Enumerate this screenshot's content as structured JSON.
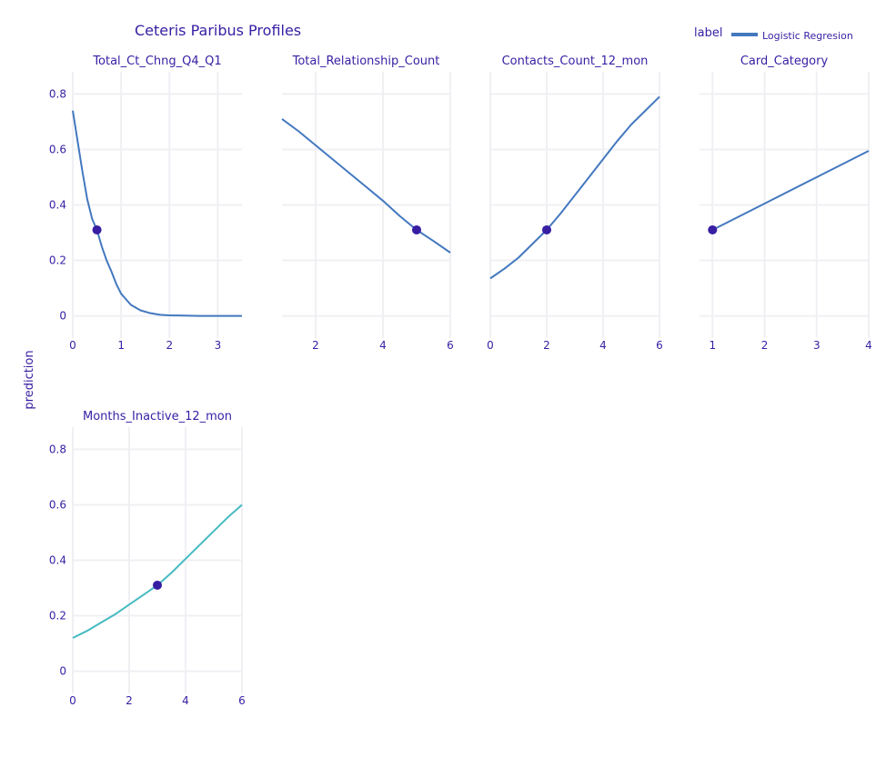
{
  "colors": {
    "text": "#371ea3",
    "grid": "#f0f0f4",
    "line_primary": "#4378bf",
    "line_secondary": "#46bac2",
    "point": "#371ea3"
  },
  "chart_data": {
    "type": "line",
    "title": "Ceteris Paribus Profiles",
    "ylabel": "prediction",
    "ylim": [
      -0.08,
      0.88
    ],
    "yticks": [
      0,
      0.2,
      0.4,
      0.6,
      0.8
    ],
    "ytick_labels": [
      "0",
      "0.2",
      "0.4",
      "0.6",
      "0.8"
    ],
    "legend": {
      "title": "label",
      "position": "top-right",
      "entries": [
        {
          "name": "Logistic Regresion",
          "color": "#4378bf"
        }
      ]
    },
    "panels": [
      {
        "title": "Total_Ct_Chng_Q4_Q1",
        "xlim": [
          0,
          3.5
        ],
        "xticks": [
          0,
          1,
          2,
          3
        ],
        "xtick_labels": [
          "0",
          "1",
          "2",
          "3"
        ],
        "color": "#4378bf",
        "x": [
          0,
          0.1,
          0.2,
          0.3,
          0.4,
          0.5,
          0.6,
          0.7,
          0.8,
          0.9,
          1.0,
          1.1,
          1.2,
          1.4,
          1.6,
          1.8,
          2.0,
          2.3,
          2.6,
          3.0,
          3.5
        ],
        "y": [
          0.74,
          0.63,
          0.52,
          0.42,
          0.35,
          0.31,
          0.25,
          0.2,
          0.16,
          0.115,
          0.08,
          0.06,
          0.04,
          0.02,
          0.01,
          0.004,
          0.002,
          0.001,
          0.0,
          0.0,
          0.0
        ],
        "point": {
          "x": 0.5,
          "y": 0.31
        }
      },
      {
        "title": "Total_Relationship_Count",
        "xlim": [
          1,
          6
        ],
        "xticks": [
          2,
          4,
          6
        ],
        "xtick_labels": [
          "2",
          "4",
          "6"
        ],
        "color": "#4378bf",
        "x": [
          1,
          1.5,
          2,
          2.5,
          3,
          3.5,
          4,
          4.5,
          5,
          5.5,
          6
        ],
        "y": [
          0.71,
          0.665,
          0.615,
          0.565,
          0.515,
          0.465,
          0.415,
          0.36,
          0.31,
          0.27,
          0.228
        ],
        "point": {
          "x": 5,
          "y": 0.31
        }
      },
      {
        "title": "Contacts_Count_12_mon",
        "xlim": [
          0,
          6
        ],
        "xticks": [
          0,
          2,
          4,
          6
        ],
        "xtick_labels": [
          "0",
          "2",
          "4",
          "6"
        ],
        "color": "#4378bf",
        "x": [
          0,
          0.5,
          1,
          1.5,
          2,
          2.5,
          3,
          3.5,
          4,
          4.5,
          5,
          5.5,
          6
        ],
        "y": [
          0.135,
          0.17,
          0.21,
          0.26,
          0.31,
          0.37,
          0.435,
          0.5,
          0.565,
          0.63,
          0.69,
          0.74,
          0.79
        ],
        "point": {
          "x": 2,
          "y": 0.31
        }
      },
      {
        "title": "Card_Category",
        "xlim": [
          0.75,
          4
        ],
        "xticks": [
          1,
          2,
          3,
          4
        ],
        "xtick_labels": [
          "1",
          "2",
          "3",
          "4"
        ],
        "color": "#4378bf",
        "x": [
          1,
          2,
          3,
          4
        ],
        "y": [
          0.31,
          0.405,
          0.5,
          0.595
        ],
        "point": {
          "x": 1,
          "y": 0.31
        }
      },
      {
        "title": "Months_Inactive_12_mon",
        "xlim": [
          0,
          6
        ],
        "xticks": [
          0,
          2,
          4,
          6
        ],
        "xtick_labels": [
          "0",
          "2",
          "4",
          "6"
        ],
        "color": "#46bac2",
        "x": [
          0,
          0.5,
          1,
          1.5,
          2,
          2.5,
          3,
          3.5,
          4,
          4.5,
          5,
          5.5,
          6
        ],
        "y": [
          0.12,
          0.145,
          0.175,
          0.205,
          0.24,
          0.275,
          0.31,
          0.355,
          0.405,
          0.455,
          0.505,
          0.555,
          0.6
        ],
        "point": {
          "x": 3,
          "y": 0.31
        }
      }
    ]
  }
}
